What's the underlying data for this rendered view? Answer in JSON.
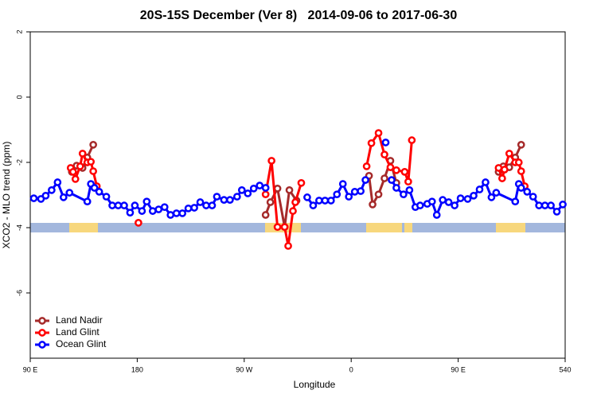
{
  "chart_data": {
    "type": "line",
    "title": "20S-15S December (Ver 8)   2014-09-06 to 2017-06-30",
    "x_label": "Longitude",
    "y_label": "XCO2 - MLO trend (ppm)",
    "xlim": [
      90,
      540
    ],
    "xticks": [
      {
        "value": 90,
        "label": "90 E"
      },
      180,
      {
        "value": 270,
        "label": "90 W"
      },
      {
        "value": 360,
        "label": "0"
      },
      {
        "value": 450,
        "label": "90 E"
      },
      540
    ],
    "ylim": [
      -8,
      2
    ],
    "yticks": [
      2,
      0,
      -2,
      -4,
      -6
    ],
    "legend": "bottom-left",
    "series": [
      {
        "name": "Land Nadir",
        "color": "#a52a2a",
        "x": [
          125,
          129,
          134,
          138,
          143,
          null,
          288,
          292,
          298,
          304,
          308,
          314,
          null,
          375,
          378,
          383,
          388,
          393,
          398,
          null,
          484,
          488,
          493,
          498,
          503
        ],
        "values": [
          -2.29,
          -2.1,
          -2.17,
          -1.85,
          -1.46,
          null,
          -3.61,
          -3.22,
          -2.8,
          -3.98,
          -2.85,
          -3.17,
          null,
          -2.41,
          -3.29,
          -2.98,
          -2.49,
          -1.95,
          -2.63,
          null,
          -2.29,
          -2.12,
          -2.15,
          -1.85,
          -1.46
        ]
      },
      {
        "name": "Land Glint",
        "color": "#ff0000",
        "x": [
          124,
          126,
          128,
          132,
          134,
          138,
          141,
          143,
          146,
          null,
          181,
          null,
          288,
          293,
          298,
          304,
          307,
          311,
          313,
          318,
          null,
          373,
          377,
          383,
          388,
          393,
          398,
          405,
          408,
          411,
          null,
          484,
          487,
          489,
          493,
          498,
          501,
          503,
          506
        ],
        "values": [
          -2.17,
          -2.29,
          -2.51,
          -2.12,
          -1.73,
          -2.0,
          -1.98,
          -2.27,
          -2.73,
          null,
          -3.85,
          null,
          -2.98,
          -1.95,
          -3.98,
          -3.98,
          -4.56,
          -3.49,
          -3.22,
          -2.63,
          null,
          -2.12,
          -1.41,
          -1.1,
          -1.76,
          -2.15,
          -2.24,
          -2.29,
          -2.59,
          -1.32,
          null,
          -2.17,
          -2.49,
          -2.22,
          -1.73,
          -2.0,
          -2.0,
          -2.27,
          -2.73
        ]
      },
      {
        "name": "Ocean Glint",
        "color": "#0000ff",
        "x": [
          93,
          99,
          103,
          108,
          113,
          118,
          123,
          138,
          141,
          144,
          148,
          154,
          159,
          164,
          169,
          174,
          178,
          184,
          188,
          193,
          198,
          203,
          208,
          213,
          218,
          223,
          228,
          233,
          238,
          243,
          247,
          253,
          258,
          264,
          268,
          273,
          278,
          283,
          288,
          null,
          323,
          328,
          333,
          338,
          343,
          348,
          353,
          358,
          363,
          368,
          372,
          null,
          389,
          null,
          394,
          398,
          404,
          409,
          414,
          418,
          424,
          428,
          432,
          437,
          442,
          447,
          452,
          458,
          463,
          468,
          473,
          478,
          482,
          498,
          501,
          503,
          508,
          513,
          518,
          523,
          528,
          533,
          538
        ],
        "values": [
          -3.1,
          -3.12,
          -3.02,
          -2.85,
          -2.61,
          -3.07,
          -2.93,
          -3.2,
          -2.66,
          -2.78,
          -2.9,
          -3.05,
          -3.32,
          -3.32,
          -3.32,
          -3.54,
          -3.32,
          -3.49,
          -3.2,
          -3.49,
          -3.44,
          -3.37,
          -3.61,
          -3.56,
          -3.56,
          -3.41,
          -3.39,
          -3.22,
          -3.32,
          -3.32,
          -3.05,
          -3.15,
          -3.15,
          -3.05,
          -2.85,
          -2.95,
          -2.8,
          -2.71,
          -2.78,
          null,
          -3.07,
          -3.32,
          -3.17,
          -3.17,
          -3.17,
          -2.98,
          -2.66,
          -3.05,
          -2.9,
          -2.88,
          -2.54,
          null,
          -1.39,
          null,
          -2.54,
          -2.78,
          -2.98,
          -2.85,
          -3.37,
          -3.32,
          -3.27,
          -3.2,
          -3.61,
          -3.15,
          -3.22,
          -3.32,
          -3.1,
          -3.12,
          -3.02,
          -2.83,
          -2.61,
          -3.07,
          -2.93,
          -3.2,
          -2.66,
          -2.78,
          -2.9,
          -3.05,
          -3.32,
          -3.32,
          -3.32,
          -3.51,
          -3.29
        ]
      }
    ]
  }
}
